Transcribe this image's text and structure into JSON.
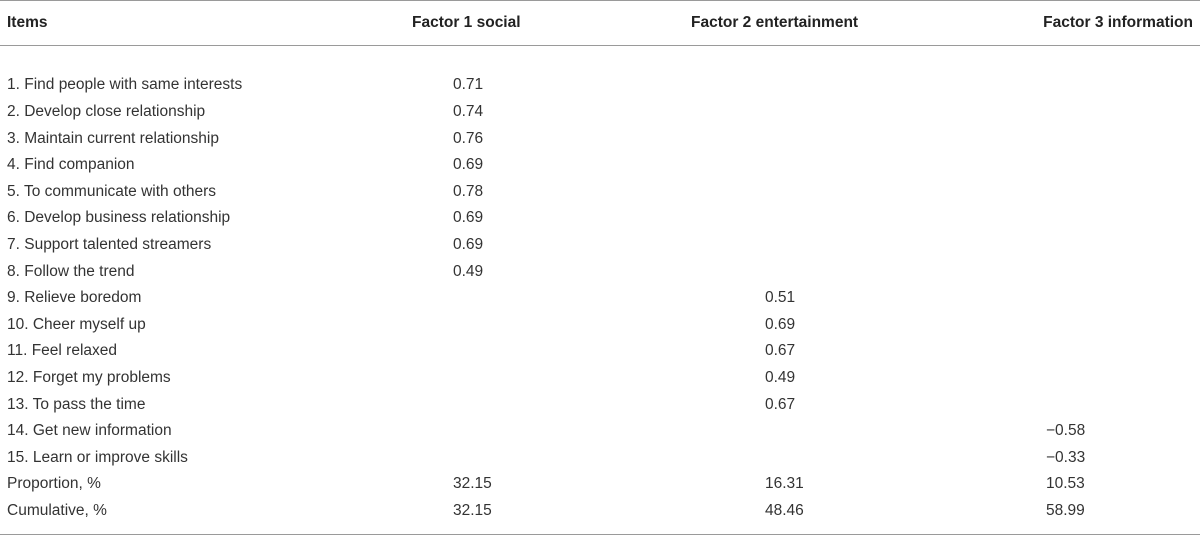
{
  "table": {
    "headers": [
      "Items",
      "Factor 1 social",
      "Factor 2 entertainment",
      "Factor 3 information"
    ],
    "rows": [
      {
        "item": "1. Find people with same interests",
        "f1": "0.71",
        "f2": "",
        "f3": ""
      },
      {
        "item": "2. Develop close relationship",
        "f1": "0.74",
        "f2": "",
        "f3": ""
      },
      {
        "item": "3. Maintain current relationship",
        "f1": "0.76",
        "f2": "",
        "f3": ""
      },
      {
        "item": "4. Find companion",
        "f1": "0.69",
        "f2": "",
        "f3": ""
      },
      {
        "item": "5. To communicate with others",
        "f1": "0.78",
        "f2": "",
        "f3": ""
      },
      {
        "item": "6. Develop business relationship",
        "f1": "0.69",
        "f2": "",
        "f3": ""
      },
      {
        "item": "7. Support talented streamers",
        "f1": "0.69",
        "f2": "",
        "f3": ""
      },
      {
        "item": "8. Follow the trend",
        "f1": "0.49",
        "f2": "",
        "f3": ""
      },
      {
        "item": "9. Relieve boredom",
        "f1": "",
        "f2": "0.51",
        "f3": ""
      },
      {
        "item": "10. Cheer myself up",
        "f1": "",
        "f2": "0.69",
        "f3": ""
      },
      {
        "item": "11. Feel relaxed",
        "f1": "",
        "f2": "0.67",
        "f3": ""
      },
      {
        "item": "12. Forget my problems",
        "f1": "",
        "f2": "0.49",
        "f3": ""
      },
      {
        "item": "13. To pass the time",
        "f1": "",
        "f2": "0.67",
        "f3": ""
      },
      {
        "item": "14. Get new information",
        "f1": "",
        "f2": "",
        "f3": "−0.58"
      },
      {
        "item": "15. Learn or improve skills",
        "f1": "",
        "f2": "",
        "f3": "−0.33"
      },
      {
        "item": "Proportion, %",
        "f1": "32.15",
        "f2": "16.31",
        "f3": "10.53"
      },
      {
        "item": "Cumulative, %",
        "f1": "32.15",
        "f2": "48.46",
        "f3": "58.99"
      }
    ]
  }
}
